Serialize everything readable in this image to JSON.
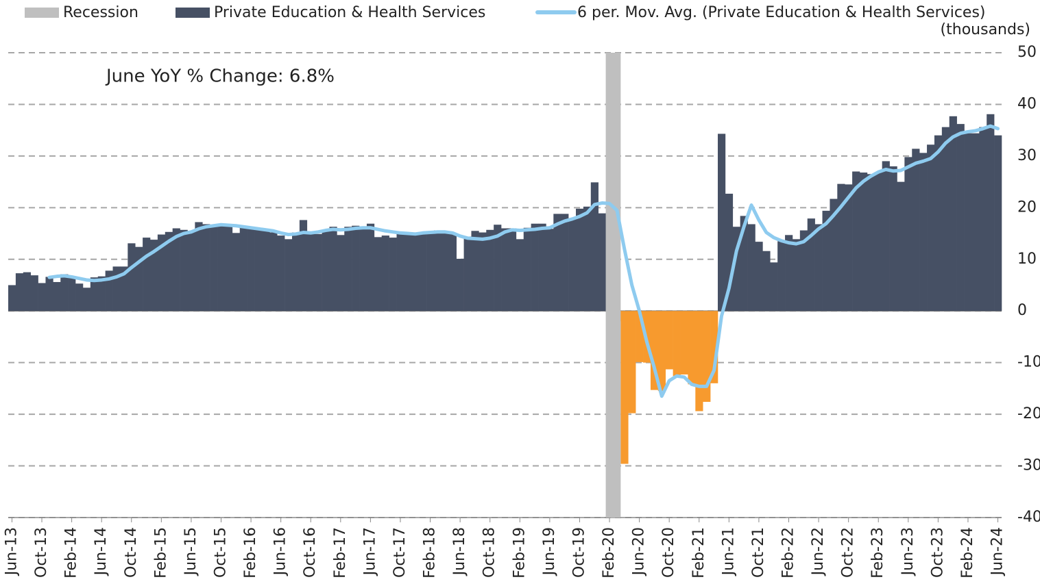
{
  "chart_data": {
    "type": "bar",
    "annotation": "June YoY % Change: 6.8%",
    "y_unit": "(thousands)",
    "categories": [
      "Jun-13",
      null,
      null,
      null,
      "Oct-13",
      null,
      null,
      null,
      "Feb-14",
      null,
      null,
      null,
      "Jun-14",
      null,
      null,
      null,
      "Oct-14",
      null,
      null,
      null,
      "Feb-15",
      null,
      null,
      null,
      "Jun-15",
      null,
      null,
      null,
      "Oct-15",
      null,
      null,
      null,
      "Feb-16",
      null,
      null,
      null,
      "Jun-16",
      null,
      null,
      null,
      "Oct-16",
      null,
      null,
      null,
      "Feb-17",
      null,
      null,
      null,
      "Jun-17",
      null,
      null,
      null,
      "Oct-17",
      null,
      null,
      null,
      "Feb-18",
      null,
      null,
      null,
      "Jun-18",
      null,
      null,
      null,
      "Oct-18",
      null,
      null,
      null,
      "Feb-19",
      null,
      null,
      null,
      "Jun-19",
      null,
      null,
      null,
      "Oct-19",
      null,
      null,
      null,
      "Feb-20",
      null,
      null,
      null,
      "Jun-20",
      null,
      null,
      null,
      "Oct-20",
      null,
      null,
      null,
      "Feb-21",
      null,
      null,
      null,
      "Jun-21",
      null,
      null,
      null,
      "Oct-21",
      null,
      null,
      null,
      "Feb-22",
      null,
      null,
      null,
      "Jun-22",
      null,
      null,
      null,
      "Oct-22",
      null,
      null,
      null,
      "Feb-23",
      null,
      null,
      null,
      "Jun-23",
      null,
      null,
      null,
      "Oct-23",
      null,
      null,
      null,
      "Feb-24",
      null,
      null,
      null,
      "Jun-24"
    ],
    "recession": {
      "name": "Recession",
      "color": "#bfbfbf",
      "start": "Feb-20",
      "months": 2
    },
    "series": [
      {
        "name": "Private Education & Health Services",
        "color": "#465064",
        "negative_color": "#f79a2e",
        "values": [
          5.0,
          7.3,
          7.5,
          6.9,
          5.4,
          6.6,
          5.6,
          7.1,
          6.7,
          5.3,
          4.5,
          6.5,
          6.7,
          7.8,
          8.6,
          8.6,
          13.1,
          12.4,
          14.2,
          13.8,
          14.8,
          15.3,
          16.0,
          15.7,
          15.5,
          17.2,
          16.8,
          16.5,
          16.9,
          16.7,
          15.1,
          16.5,
          16.3,
          16.0,
          15.7,
          15.2,
          14.6,
          13.9,
          15.2,
          17.6,
          15.2,
          14.9,
          15.5,
          16.3,
          14.7,
          16.3,
          16.5,
          16.0,
          16.9,
          14.3,
          14.6,
          14.2,
          15.3,
          14.9,
          14.8,
          15.1,
          15.2,
          15.6,
          15.3,
          14.9,
          10.1,
          14.4,
          15.5,
          15.2,
          15.7,
          16.7,
          16.0,
          16.0,
          13.9,
          16.1,
          16.9,
          16.9,
          15.9,
          18.8,
          18.8,
          17.9,
          19.8,
          20.2,
          24.9,
          18.9,
          19.0,
          -2.0,
          -29.6,
          -19.8,
          -9.9,
          -10.0,
          -15.3,
          -15.5,
          -11.3,
          -12.6,
          -12.3,
          -14.2,
          -19.4,
          -17.6,
          -14.0,
          34.3,
          22.7,
          16.3,
          18.4,
          16.8,
          13.4,
          11.6,
          9.4,
          13.5,
          14.7,
          13.9,
          15.6,
          17.9,
          16.8,
          19.4,
          21.7,
          24.6,
          24.5,
          27.0,
          26.8,
          26.5,
          26.8,
          29.0,
          28.0,
          25.0,
          29.8,
          31.4,
          30.6,
          32.2,
          34.0,
          35.6,
          37.7,
          36.2,
          34.4,
          34.4,
          35.6,
          38.1,
          34.0
        ]
      },
      {
        "name": "6 per. Mov. Avg. (Private Education & Health Services)",
        "type": "line",
        "color": "#8ecbef",
        "values": [
          null,
          null,
          null,
          null,
          null,
          6.5,
          6.7,
          6.8,
          6.6,
          6.3,
          6.0,
          5.9,
          6.0,
          6.2,
          6.6,
          7.2,
          8.4,
          9.5,
          10.6,
          11.5,
          12.5,
          13.5,
          14.4,
          15.0,
          15.3,
          15.9,
          16.3,
          16.5,
          16.7,
          16.6,
          16.5,
          16.3,
          16.1,
          15.9,
          15.7,
          15.5,
          15.1,
          14.8,
          14.9,
          15.2,
          15.1,
          15.3,
          15.6,
          15.8,
          15.7,
          15.8,
          16.0,
          16.1,
          16.1,
          15.8,
          15.5,
          15.3,
          15.1,
          15.0,
          14.9,
          15.1,
          15.2,
          15.3,
          15.3,
          15.1,
          14.5,
          14.1,
          14.0,
          13.9,
          14.1,
          14.5,
          15.3,
          15.7,
          15.6,
          15.7,
          15.8,
          16.0,
          16.1,
          16.8,
          17.4,
          17.8,
          18.3,
          19.0,
          20.6,
          20.9,
          20.8,
          19.5,
          12.0,
          5.0,
          0.0,
          -6.0,
          -11.0,
          -16.5,
          -13.5,
          -12.6,
          -12.8,
          -14.2,
          -14.6,
          -14.6,
          -11.5,
          -1.0,
          4.4,
          11.6,
          16.3,
          20.5,
          17.6,
          15.2,
          14.2,
          13.6,
          13.2,
          13.0,
          13.4,
          14.6,
          15.9,
          16.9,
          18.5,
          20.2,
          22.0,
          23.8,
          25.1,
          26.1,
          26.9,
          27.4,
          27.1,
          27.2,
          27.9,
          28.6,
          29.0,
          29.5,
          30.8,
          32.5,
          33.7,
          34.4,
          34.7,
          34.9,
          35.3,
          35.8,
          35.3
        ]
      }
    ],
    "ylim": [
      -40,
      50
    ],
    "yticks": [
      -40,
      -30,
      -20,
      -10,
      0,
      10,
      20,
      30,
      40,
      50
    ],
    "grid": true
  }
}
